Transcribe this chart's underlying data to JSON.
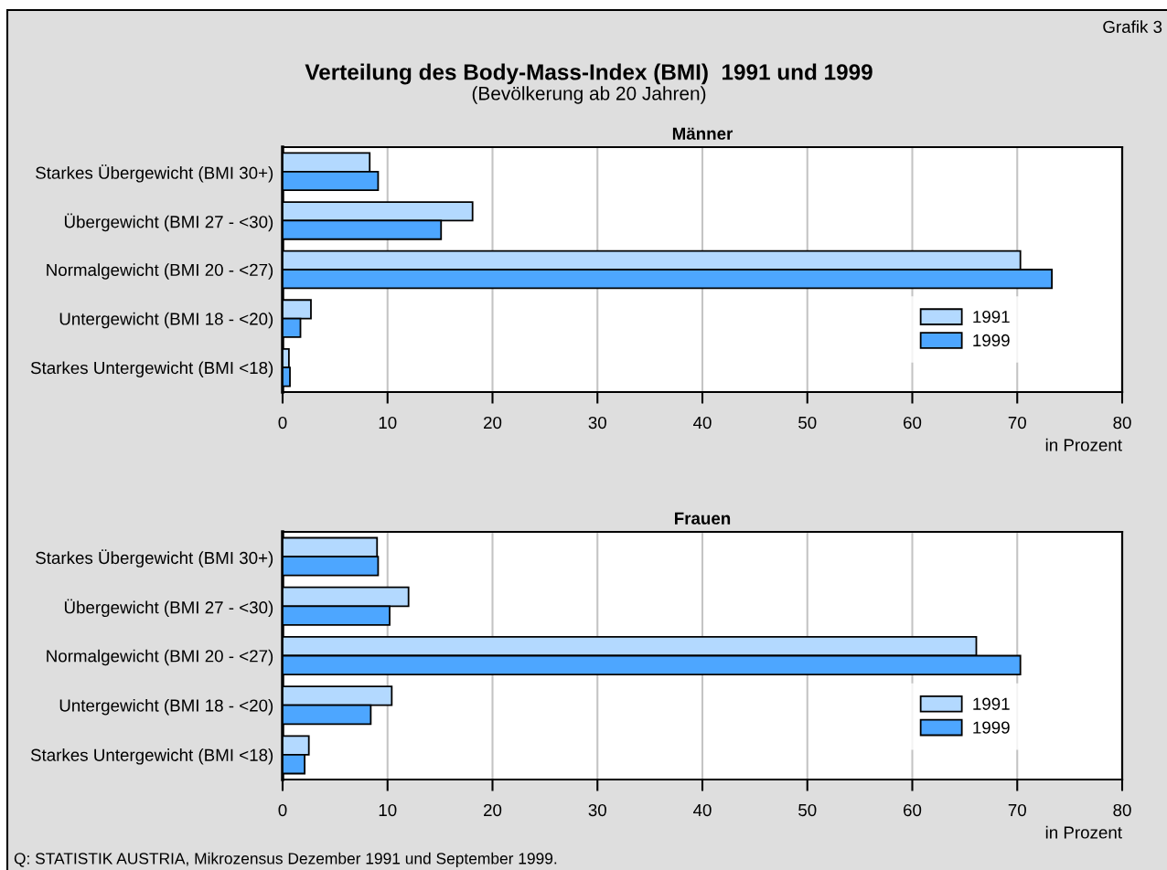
{
  "chart_data": [
    {
      "type": "other",
      "title": "Verteilung des Body-Mass-Index (BMI)  1991 und 1999",
      "subtitle": "(Bevölkerung ab 20 Jahren)",
      "annotations": [
        "Grafik 3"
      ]
    },
    {
      "type": "bar",
      "orientation": "horizontal",
      "title": "Männer",
      "categories": [
        "Starkes Übergewicht (BMI 30+)",
        "Übergewicht (BMI 27 - <30)",
        "Normalgewicht (BMI 20 - <27)",
        "Untergewicht (BMI 18 - <20)",
        "Starkes Untergewicht (BMI <18)"
      ],
      "series": [
        {
          "name": "1991",
          "color": "#b3d9ff",
          "values": [
            8.3,
            18.1,
            70.3,
            2.7,
            0.6
          ]
        },
        {
          "name": "1999",
          "color": "#4da6ff",
          "values": [
            9.1,
            15.1,
            73.3,
            1.7,
            0.7
          ]
        }
      ],
      "xlim": [
        0,
        80
      ],
      "xticks": [
        0,
        10,
        20,
        30,
        40,
        50,
        60,
        70,
        80
      ],
      "xlabel": "in Prozent",
      "grid": "x",
      "legend": "lower right"
    },
    {
      "type": "bar",
      "orientation": "horizontal",
      "title": "Frauen",
      "categories": [
        "Starkes Übergewicht (BMI 30+)",
        "Übergewicht (BMI 27 - <30)",
        "Normalgewicht (BMI 20 - <27)",
        "Untergewicht (BMI 18 - <20)",
        "Starkes Untergewicht (BMI <18)"
      ],
      "series": [
        {
          "name": "1991",
          "color": "#b3d9ff",
          "values": [
            9.0,
            12.0,
            66.1,
            10.4,
            2.5
          ]
        },
        {
          "name": "1999",
          "color": "#4da6ff",
          "values": [
            9.1,
            10.2,
            70.3,
            8.4,
            2.1
          ]
        }
      ],
      "xlim": [
        0,
        80
      ],
      "xticks": [
        0,
        10,
        20,
        30,
        40,
        50,
        60,
        70,
        80
      ],
      "xlabel": "in Prozent",
      "grid": "x",
      "legend": "lower right",
      "annotations": [
        "Q: STATISTIK AUSTRIA, Mikrozensus Dezember 1991 und September 1999."
      ]
    }
  ]
}
